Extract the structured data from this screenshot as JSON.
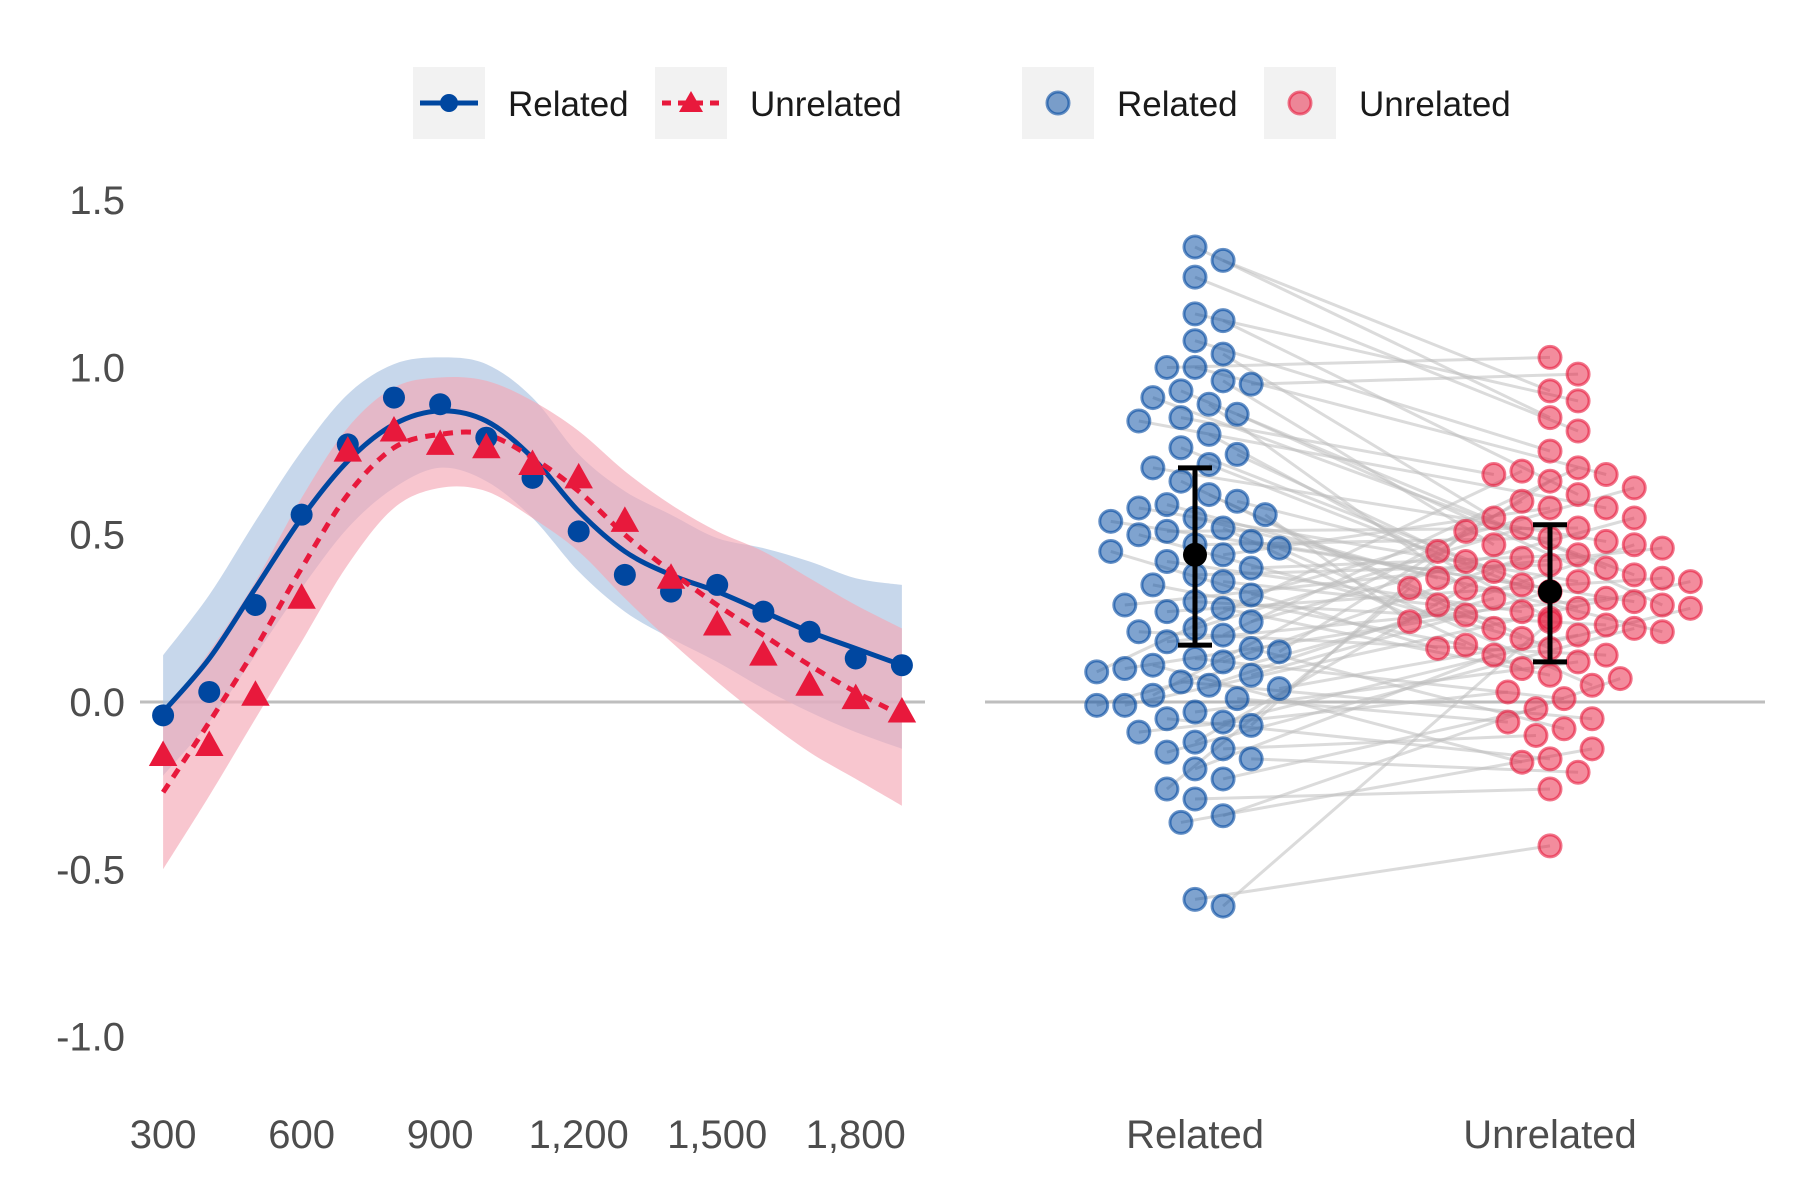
{
  "colors": {
    "related": "#0047A0",
    "unrelated": "#E8193C",
    "related_band": "#A9C2E0",
    "unrelated_band": "#F5A8B6",
    "pair_line": "#BDBDBD",
    "summary": "#000000",
    "zero_line": "#BEBEBE",
    "legend_key_bg": "#F2F2F2"
  },
  "legend": {
    "lines": [
      {
        "label": "Related",
        "series": "related",
        "marker": "circle",
        "linestyle": "solid"
      },
      {
        "label": "Unrelated",
        "series": "unrelated",
        "marker": "triangle",
        "linestyle": "dashed"
      }
    ],
    "points": [
      {
        "label": "Related",
        "series": "related"
      },
      {
        "label": "Unrelated",
        "series": "unrelated"
      }
    ]
  },
  "chart_data": [
    {
      "type": "line",
      "ylim": [
        -1.1,
        1.65
      ],
      "y_ticks": [
        1.5,
        1.0,
        0.5,
        0.0,
        -0.5,
        -1.0
      ],
      "y_tick_labels": [
        "1.5",
        "1.0",
        "0.5",
        "0.0",
        "-0.5",
        "-1.0"
      ],
      "xlim": [
        250,
        1950
      ],
      "x_ticks": [
        300,
        600,
        900,
        1200,
        1500,
        1800
      ],
      "x_tick_labels": [
        "300",
        "600",
        "900",
        "1,200",
        "1,500",
        "1,800"
      ],
      "reference_line_y": 0,
      "x": [
        300,
        400,
        500,
        600,
        700,
        800,
        900,
        1000,
        1100,
        1200,
        1300,
        1400,
        1500,
        1600,
        1700,
        1800,
        1900
      ],
      "series": [
        {
          "key": "related",
          "points": [
            -0.04,
            0.03,
            0.29,
            0.56,
            0.77,
            0.91,
            0.89,
            0.79,
            0.67,
            0.51,
            0.38,
            0.33,
            0.35,
            0.27,
            0.21,
            0.13,
            0.11
          ],
          "fit": [
            -0.03,
            0.13,
            0.34,
            0.55,
            0.72,
            0.83,
            0.87,
            0.84,
            0.73,
            0.57,
            0.45,
            0.38,
            0.33,
            0.27,
            0.21,
            0.16,
            0.11
          ],
          "ci_lower": [
            -0.22,
            -0.06,
            0.14,
            0.34,
            0.52,
            0.64,
            0.7,
            0.66,
            0.55,
            0.39,
            0.27,
            0.19,
            0.12,
            0.04,
            -0.03,
            -0.09,
            -0.14
          ],
          "ci_upper": [
            0.14,
            0.32,
            0.54,
            0.75,
            0.92,
            1.01,
            1.03,
            1.01,
            0.91,
            0.74,
            0.63,
            0.56,
            0.49,
            0.46,
            0.42,
            0.37,
            0.35
          ]
        },
        {
          "key": "unrelated",
          "points": [
            -0.16,
            -0.13,
            0.02,
            0.31,
            0.75,
            0.81,
            0.77,
            0.76,
            0.71,
            0.67,
            0.54,
            0.37,
            0.23,
            0.14,
            0.05,
            0.01,
            -0.03
          ],
          "fit": [
            -0.27,
            -0.06,
            0.16,
            0.4,
            0.62,
            0.76,
            0.8,
            0.8,
            0.73,
            0.63,
            0.5,
            0.39,
            0.29,
            0.2,
            0.11,
            0.03,
            -0.04
          ],
          "ci_lower": [
            -0.5,
            -0.28,
            -0.05,
            0.18,
            0.41,
            0.58,
            0.64,
            0.63,
            0.55,
            0.45,
            0.31,
            0.18,
            0.06,
            -0.05,
            -0.15,
            -0.23,
            -0.31
          ],
          "ci_upper": [
            -0.04,
            0.15,
            0.36,
            0.61,
            0.82,
            0.94,
            0.97,
            0.96,
            0.9,
            0.81,
            0.69,
            0.59,
            0.51,
            0.45,
            0.37,
            0.29,
            0.22
          ]
        }
      ]
    },
    {
      "type": "scatter",
      "categories": [
        "Related",
        "Unrelated"
      ],
      "ylim": [
        -1.1,
        1.65
      ],
      "reference_line_y": 0,
      "paired": true,
      "summary": [
        {
          "category": "Related",
          "mean": 0.44,
          "lower": 0.17,
          "upper": 0.7
        },
        {
          "category": "Unrelated",
          "mean": 0.33,
          "lower": 0.12,
          "upper": 0.53
        }
      ],
      "pairs": [
        [
          1.36,
          0.85
        ],
        [
          1.32,
          0.93
        ],
        [
          1.27,
          0.81
        ],
        [
          1.16,
          0.9
        ],
        [
          1.14,
          0.62
        ],
        [
          1.08,
          0.75
        ],
        [
          1.04,
          0.55
        ],
        [
          1.0,
          0.68
        ],
        [
          0.96,
          0.47
        ],
        [
          0.93,
          0.4
        ],
        [
          0.91,
          0.38
        ],
        [
          0.89,
          0.34
        ],
        [
          0.86,
          0.29
        ],
        [
          0.8,
          0.25
        ],
        [
          0.76,
          0.33
        ],
        [
          0.74,
          0.42
        ],
        [
          0.71,
          0.28
        ],
        [
          0.66,
          0.22
        ],
        [
          0.62,
          0.16
        ],
        [
          0.6,
          0.45
        ],
        [
          0.58,
          0.36
        ],
        [
          0.56,
          0.24
        ],
        [
          0.54,
          0.3
        ],
        [
          0.52,
          0.1
        ],
        [
          0.51,
          0.52
        ],
        [
          0.5,
          0.19
        ],
        [
          0.48,
          0.35
        ],
        [
          0.46,
          0.05
        ],
        [
          0.44,
          0.58
        ],
        [
          0.42,
          0.27
        ],
        [
          0.38,
          0.41
        ],
        [
          0.35,
          0.17
        ],
        [
          0.32,
          0.64
        ],
        [
          0.29,
          0.46
        ],
        [
          0.28,
          0.08
        ],
        [
          0.27,
          0.37
        ],
        [
          0.24,
          0.55
        ],
        [
          0.21,
          0.14
        ],
        [
          0.18,
          0.31
        ],
        [
          0.15,
          0.66
        ],
        [
          0.13,
          0.01
        ],
        [
          0.12,
          0.43
        ],
        [
          0.1,
          0.26
        ],
        [
          0.09,
          0.69
        ],
        [
          0.08,
          0.33
        ],
        [
          0.06,
          -0.05
        ],
        [
          0.05,
          0.47
        ],
        [
          0.04,
          0.2
        ],
        [
          0.02,
          0.6
        ],
        [
          -0.01,
          0.36
        ],
        [
          -0.03,
          0.12
        ],
        [
          -0.05,
          -0.17
        ],
        [
          -0.06,
          0.28
        ],
        [
          -0.07,
          0.51
        ],
        [
          -0.09,
          0.03
        ],
        [
          -0.12,
          0.39
        ],
        [
          -0.14,
          -0.1
        ],
        [
          -0.15,
          0.22
        ],
        [
          -0.17,
          -0.21
        ],
        [
          -0.2,
          0.14
        ],
        [
          -0.23,
          -0.02
        ],
        [
          -0.26,
          0.34
        ],
        [
          -0.29,
          -0.26
        ],
        [
          -0.34,
          0.07
        ],
        [
          -0.36,
          -0.14
        ],
        [
          -0.61,
          0.24
        ],
        [
          -0.59,
          -0.43
        ],
        [
          0.7,
          0.48
        ],
        [
          0.84,
          0.58
        ],
        [
          0.4,
          0.44
        ],
        [
          0.3,
          0.23
        ],
        [
          0.22,
          0.52
        ],
        [
          0.11,
          -0.18
        ],
        [
          -0.01,
          0.31
        ],
        [
          0.01,
          -0.06
        ],
        [
          0.55,
          0.21
        ],
        [
          0.47,
          0.49
        ],
        [
          0.2,
          0.7
        ],
        [
          0.85,
          0.68
        ],
        [
          0.95,
          0.98
        ],
        [
          1.0,
          1.03
        ],
        [
          0.59,
          0.37
        ],
        [
          0.45,
          0.16
        ],
        [
          0.36,
          0.29
        ],
        [
          0.16,
          -0.08
        ]
      ]
    }
  ]
}
